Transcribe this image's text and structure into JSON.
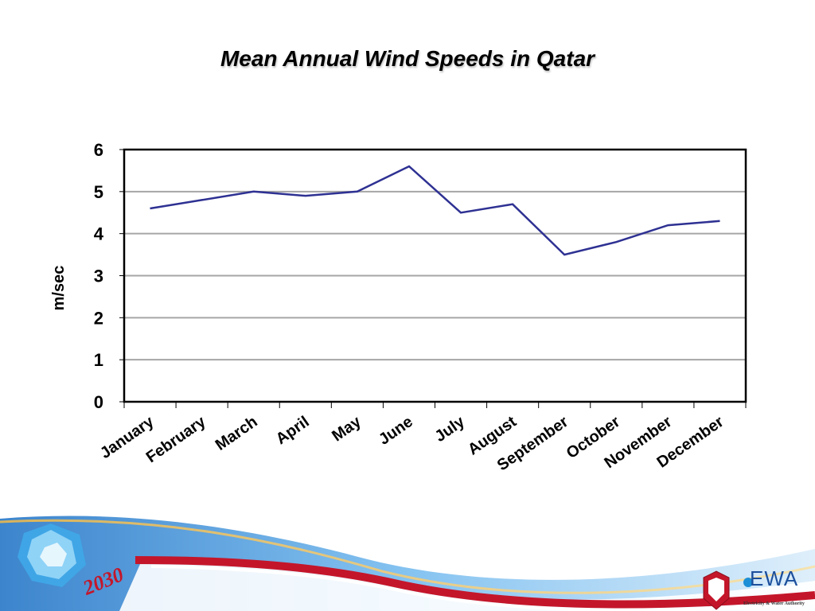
{
  "chart_data": {
    "type": "line",
    "title": "Mean Annual Wind Speeds in Qatar",
    "xlabel": "",
    "ylabel": "m/sec",
    "categories": [
      "January",
      "February",
      "March",
      "April",
      "May",
      "June",
      "July",
      "August",
      "September",
      "October",
      "November",
      "December"
    ],
    "series": [
      {
        "values": [
          4.6,
          4.8,
          5.0,
          4.9,
          5.0,
          5.6,
          4.5,
          4.7,
          3.5,
          3.8,
          4.2,
          4.3
        ],
        "color": "#2e3192"
      }
    ],
    "ylim": [
      0,
      6
    ],
    "yticks": [
      0,
      1,
      2,
      3,
      4,
      5,
      6
    ],
    "grid": true,
    "legend": "none"
  },
  "footer": {
    "vision_logo_text": "2030",
    "authority_logo_text": "EWA",
    "authority_name_en": "Electricity & Water Authority"
  },
  "colors": {
    "line": "#2e3192",
    "gridline": "#a6a6a6",
    "wave_blue": "#3b8fd6",
    "wave_red": "#c4162a"
  }
}
